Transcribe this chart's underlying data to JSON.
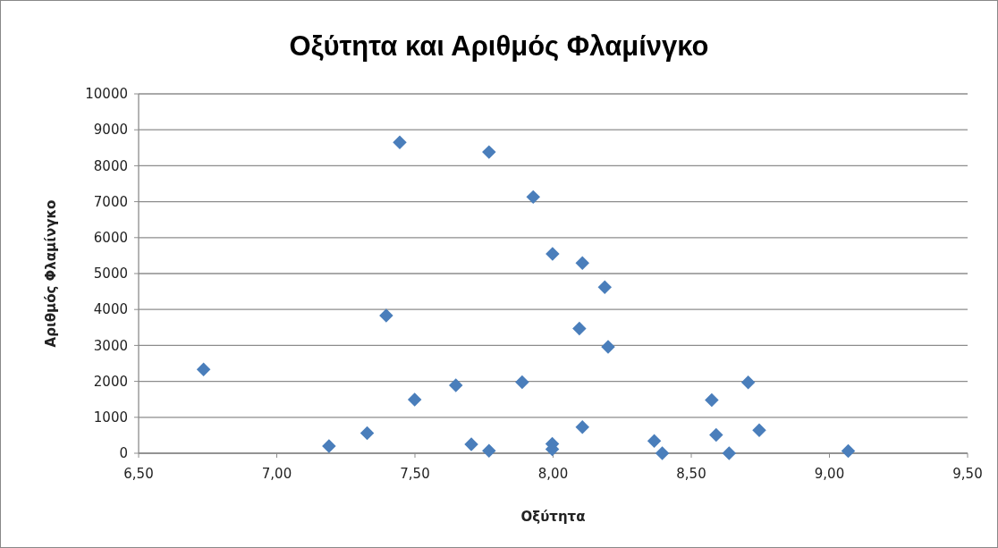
{
  "chart_data": {
    "type": "scatter",
    "title": "Οξύτητα και Αριθμός Φλαμίνγκο",
    "xlabel": "Οξύτητα",
    "ylabel": "Αριθμός Φλαμίνγκο",
    "x": [
      7.445,
      7.768,
      7.928,
      7.998,
      8.106,
      8.187,
      7.396,
      8.095,
      8.199,
      6.735,
      7.648,
      7.888,
      7.499,
      7.327,
      7.189,
      7.704,
      7.768,
      7.997,
      7.997,
      8.106,
      8.574,
      8.706,
      8.746,
      8.59,
      8.366,
      8.395,
      8.637,
      9.068
    ],
    "values": [
      8650,
      8380,
      7130,
      5550,
      5290,
      4620,
      3830,
      3470,
      2960,
      2330,
      1890,
      1980,
      1490,
      560,
      200,
      250,
      70,
      260,
      110,
      730,
      1480,
      1970,
      640,
      510,
      340,
      0,
      0,
      60
    ],
    "color": "#4a7ebb",
    "marker": "diamond",
    "grid": "y",
    "xlim": [
      6.5,
      9.5
    ],
    "xticks": [
      {
        "value": 6.5,
        "label": "6,50"
      },
      {
        "value": 7,
        "label": "7,00"
      },
      {
        "value": 7.5,
        "label": "7,50"
      },
      {
        "value": 8,
        "label": "8,00"
      },
      {
        "value": 8.5,
        "label": "8,50"
      },
      {
        "value": 9,
        "label": "9,00"
      },
      {
        "value": 9.5,
        "label": "9,50"
      }
    ],
    "ylim": [
      0,
      10000
    ],
    "yticks": [
      0,
      1000,
      2000,
      3000,
      4000,
      5000,
      6000,
      7000,
      8000,
      9000,
      10000
    ]
  }
}
